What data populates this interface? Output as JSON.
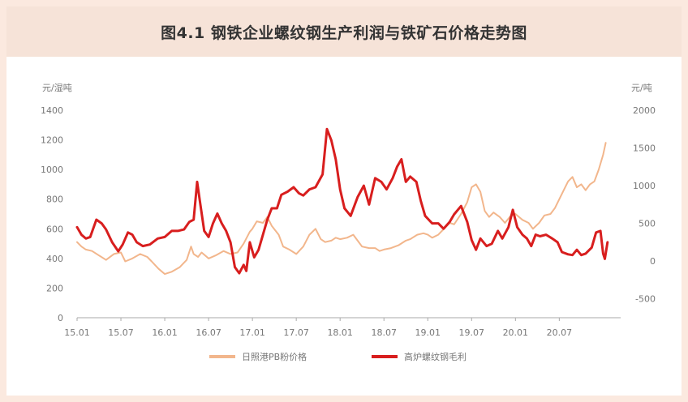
{
  "title": "图4.1 钢铁企业螺纹钢生产利润与铁矿石价格走势图",
  "chart_data": {
    "type": "line",
    "y_left_label": "元/湿吨",
    "y_right_label": "元/吨",
    "y_left_ticks": [
      "1400",
      "1200",
      "1000",
      "800",
      "600",
      "400",
      "200",
      "0"
    ],
    "y_right_ticks": [
      "2000",
      "1500",
      "1000",
      "500",
      "0",
      "-500"
    ],
    "ylim_left": [
      0,
      1400
    ],
    "ylim_right": [
      -750,
      2000
    ],
    "x_ticks": [
      "15.01",
      "15.07",
      "16.01",
      "16.07",
      "17.01",
      "17.07",
      "18.01",
      "18.07",
      "19.01",
      "19.07",
      "20.01",
      "20.07"
    ],
    "x_range": [
      2015.0,
      2021.2
    ],
    "grid": false,
    "legend_position": "bottom",
    "colors": {
      "iron_ore": "#f2b68c",
      "margin": "#d81e1e",
      "axis": "#aaaaaa"
    },
    "series": [
      {
        "name": "日照港PB粉价格",
        "axis": "left",
        "points": [
          [
            2015.0,
            510
          ],
          [
            2015.05,
            480
          ],
          [
            2015.1,
            460
          ],
          [
            2015.17,
            450
          ],
          [
            2015.25,
            420
          ],
          [
            2015.33,
            390
          ],
          [
            2015.42,
            430
          ],
          [
            2015.5,
            440
          ],
          [
            2015.55,
            380
          ],
          [
            2015.63,
            400
          ],
          [
            2015.72,
            430
          ],
          [
            2015.8,
            410
          ],
          [
            2015.85,
            380
          ],
          [
            2015.93,
            330
          ],
          [
            2016.0,
            295
          ],
          [
            2016.08,
            310
          ],
          [
            2016.17,
            340
          ],
          [
            2016.25,
            390
          ],
          [
            2016.3,
            480
          ],
          [
            2016.33,
            430
          ],
          [
            2016.38,
            410
          ],
          [
            2016.42,
            440
          ],
          [
            2016.5,
            400
          ],
          [
            2016.58,
            420
          ],
          [
            2016.67,
            450
          ],
          [
            2016.75,
            430
          ],
          [
            2016.83,
            440
          ],
          [
            2016.9,
            500
          ],
          [
            2016.97,
            580
          ],
          [
            2017.0,
            600
          ],
          [
            2017.05,
            650
          ],
          [
            2017.12,
            640
          ],
          [
            2017.17,
            680
          ],
          [
            2017.22,
            620
          ],
          [
            2017.3,
            560
          ],
          [
            2017.35,
            480
          ],
          [
            2017.42,
            460
          ],
          [
            2017.5,
            430
          ],
          [
            2017.58,
            480
          ],
          [
            2017.65,
            560
          ],
          [
            2017.72,
            600
          ],
          [
            2017.78,
            530
          ],
          [
            2017.83,
            510
          ],
          [
            2017.9,
            520
          ],
          [
            2017.95,
            540
          ],
          [
            2018.0,
            530
          ],
          [
            2018.08,
            540
          ],
          [
            2018.15,
            560
          ],
          [
            2018.2,
            520
          ],
          [
            2018.25,
            480
          ],
          [
            2018.33,
            470
          ],
          [
            2018.4,
            470
          ],
          [
            2018.45,
            450
          ],
          [
            2018.5,
            460
          ],
          [
            2018.58,
            470
          ],
          [
            2018.67,
            490
          ],
          [
            2018.75,
            520
          ],
          [
            2018.8,
            530
          ],
          [
            2018.88,
            560
          ],
          [
            2018.95,
            570
          ],
          [
            2019.0,
            560
          ],
          [
            2019.05,
            540
          ],
          [
            2019.12,
            560
          ],
          [
            2019.2,
            610
          ],
          [
            2019.25,
            640
          ],
          [
            2019.3,
            630
          ],
          [
            2019.38,
            700
          ],
          [
            2019.45,
            780
          ],
          [
            2019.5,
            880
          ],
          [
            2019.55,
            900
          ],
          [
            2019.6,
            850
          ],
          [
            2019.65,
            720
          ],
          [
            2019.7,
            680
          ],
          [
            2019.75,
            710
          ],
          [
            2019.82,
            680
          ],
          [
            2019.88,
            640
          ],
          [
            2019.95,
            690
          ],
          [
            2020.0,
            700
          ],
          [
            2020.08,
            660
          ],
          [
            2020.15,
            640
          ],
          [
            2020.2,
            600
          ],
          [
            2020.27,
            640
          ],
          [
            2020.33,
            690
          ],
          [
            2020.4,
            700
          ],
          [
            2020.45,
            740
          ],
          [
            2020.5,
            800
          ],
          [
            2020.55,
            860
          ],
          [
            2020.6,
            920
          ],
          [
            2020.65,
            950
          ],
          [
            2020.7,
            880
          ],
          [
            2020.75,
            900
          ],
          [
            2020.8,
            860
          ],
          [
            2020.85,
            900
          ],
          [
            2020.9,
            920
          ],
          [
            2020.95,
            1000
          ],
          [
            2021.0,
            1100
          ],
          [
            2021.03,
            1180
          ]
        ]
      },
      {
        "name": "高炉螺纹钢毛利",
        "axis": "right",
        "points": [
          [
            2015.0,
            450
          ],
          [
            2015.05,
            350
          ],
          [
            2015.1,
            300
          ],
          [
            2015.15,
            320
          ],
          [
            2015.22,
            550
          ],
          [
            2015.28,
            500
          ],
          [
            2015.33,
            420
          ],
          [
            2015.4,
            250
          ],
          [
            2015.47,
            130
          ],
          [
            2015.52,
            220
          ],
          [
            2015.58,
            380
          ],
          [
            2015.63,
            350
          ],
          [
            2015.68,
            250
          ],
          [
            2015.75,
            200
          ],
          [
            2015.83,
            220
          ],
          [
            2015.92,
            300
          ],
          [
            2016.0,
            320
          ],
          [
            2016.08,
            400
          ],
          [
            2016.15,
            400
          ],
          [
            2016.22,
            420
          ],
          [
            2016.28,
            520
          ],
          [
            2016.33,
            550
          ],
          [
            2016.37,
            1050
          ],
          [
            2016.4,
            800
          ],
          [
            2016.45,
            400
          ],
          [
            2016.5,
            320
          ],
          [
            2016.55,
            500
          ],
          [
            2016.6,
            630
          ],
          [
            2016.65,
            500
          ],
          [
            2016.7,
            400
          ],
          [
            2016.75,
            250
          ],
          [
            2016.8,
            -80
          ],
          [
            2016.85,
            -160
          ],
          [
            2016.9,
            -50
          ],
          [
            2016.93,
            -130
          ],
          [
            2016.97,
            250
          ],
          [
            2017.02,
            50
          ],
          [
            2017.07,
            150
          ],
          [
            2017.12,
            350
          ],
          [
            2017.17,
            550
          ],
          [
            2017.22,
            700
          ],
          [
            2017.28,
            700
          ],
          [
            2017.33,
            880
          ],
          [
            2017.4,
            920
          ],
          [
            2017.47,
            980
          ],
          [
            2017.53,
            900
          ],
          [
            2017.58,
            870
          ],
          [
            2017.65,
            950
          ],
          [
            2017.72,
            980
          ],
          [
            2017.8,
            1150
          ],
          [
            2017.85,
            1750
          ],
          [
            2017.9,
            1600
          ],
          [
            2017.95,
            1350
          ],
          [
            2018.0,
            950
          ],
          [
            2018.05,
            700
          ],
          [
            2018.12,
            600
          ],
          [
            2018.2,
            850
          ],
          [
            2018.27,
            1000
          ],
          [
            2018.33,
            750
          ],
          [
            2018.4,
            1100
          ],
          [
            2018.47,
            1050
          ],
          [
            2018.53,
            950
          ],
          [
            2018.6,
            1100
          ],
          [
            2018.65,
            1250
          ],
          [
            2018.7,
            1350
          ],
          [
            2018.75,
            1050
          ],
          [
            2018.8,
            1120
          ],
          [
            2018.87,
            1050
          ],
          [
            2018.92,
            800
          ],
          [
            2018.97,
            600
          ],
          [
            2019.05,
            500
          ],
          [
            2019.12,
            500
          ],
          [
            2019.18,
            430
          ],
          [
            2019.25,
            520
          ],
          [
            2019.3,
            620
          ],
          [
            2019.38,
            730
          ],
          [
            2019.45,
            520
          ],
          [
            2019.5,
            280
          ],
          [
            2019.55,
            150
          ],
          [
            2019.6,
            300
          ],
          [
            2019.67,
            200
          ],
          [
            2019.73,
            230
          ],
          [
            2019.8,
            400
          ],
          [
            2019.85,
            300
          ],
          [
            2019.92,
            450
          ],
          [
            2019.97,
            680
          ],
          [
            2020.02,
            450
          ],
          [
            2020.08,
            350
          ],
          [
            2020.13,
            300
          ],
          [
            2020.18,
            200
          ],
          [
            2020.23,
            350
          ],
          [
            2020.28,
            330
          ],
          [
            2020.35,
            350
          ],
          [
            2020.42,
            300
          ],
          [
            2020.48,
            250
          ],
          [
            2020.53,
            120
          ],
          [
            2020.6,
            90
          ],
          [
            2020.65,
            80
          ],
          [
            2020.7,
            150
          ],
          [
            2020.75,
            80
          ],
          [
            2020.8,
            100
          ],
          [
            2020.87,
            180
          ],
          [
            2020.92,
            380
          ],
          [
            2020.97,
            400
          ],
          [
            2021.0,
            100
          ],
          [
            2021.02,
            30
          ],
          [
            2021.05,
            250
          ]
        ]
      }
    ]
  }
}
